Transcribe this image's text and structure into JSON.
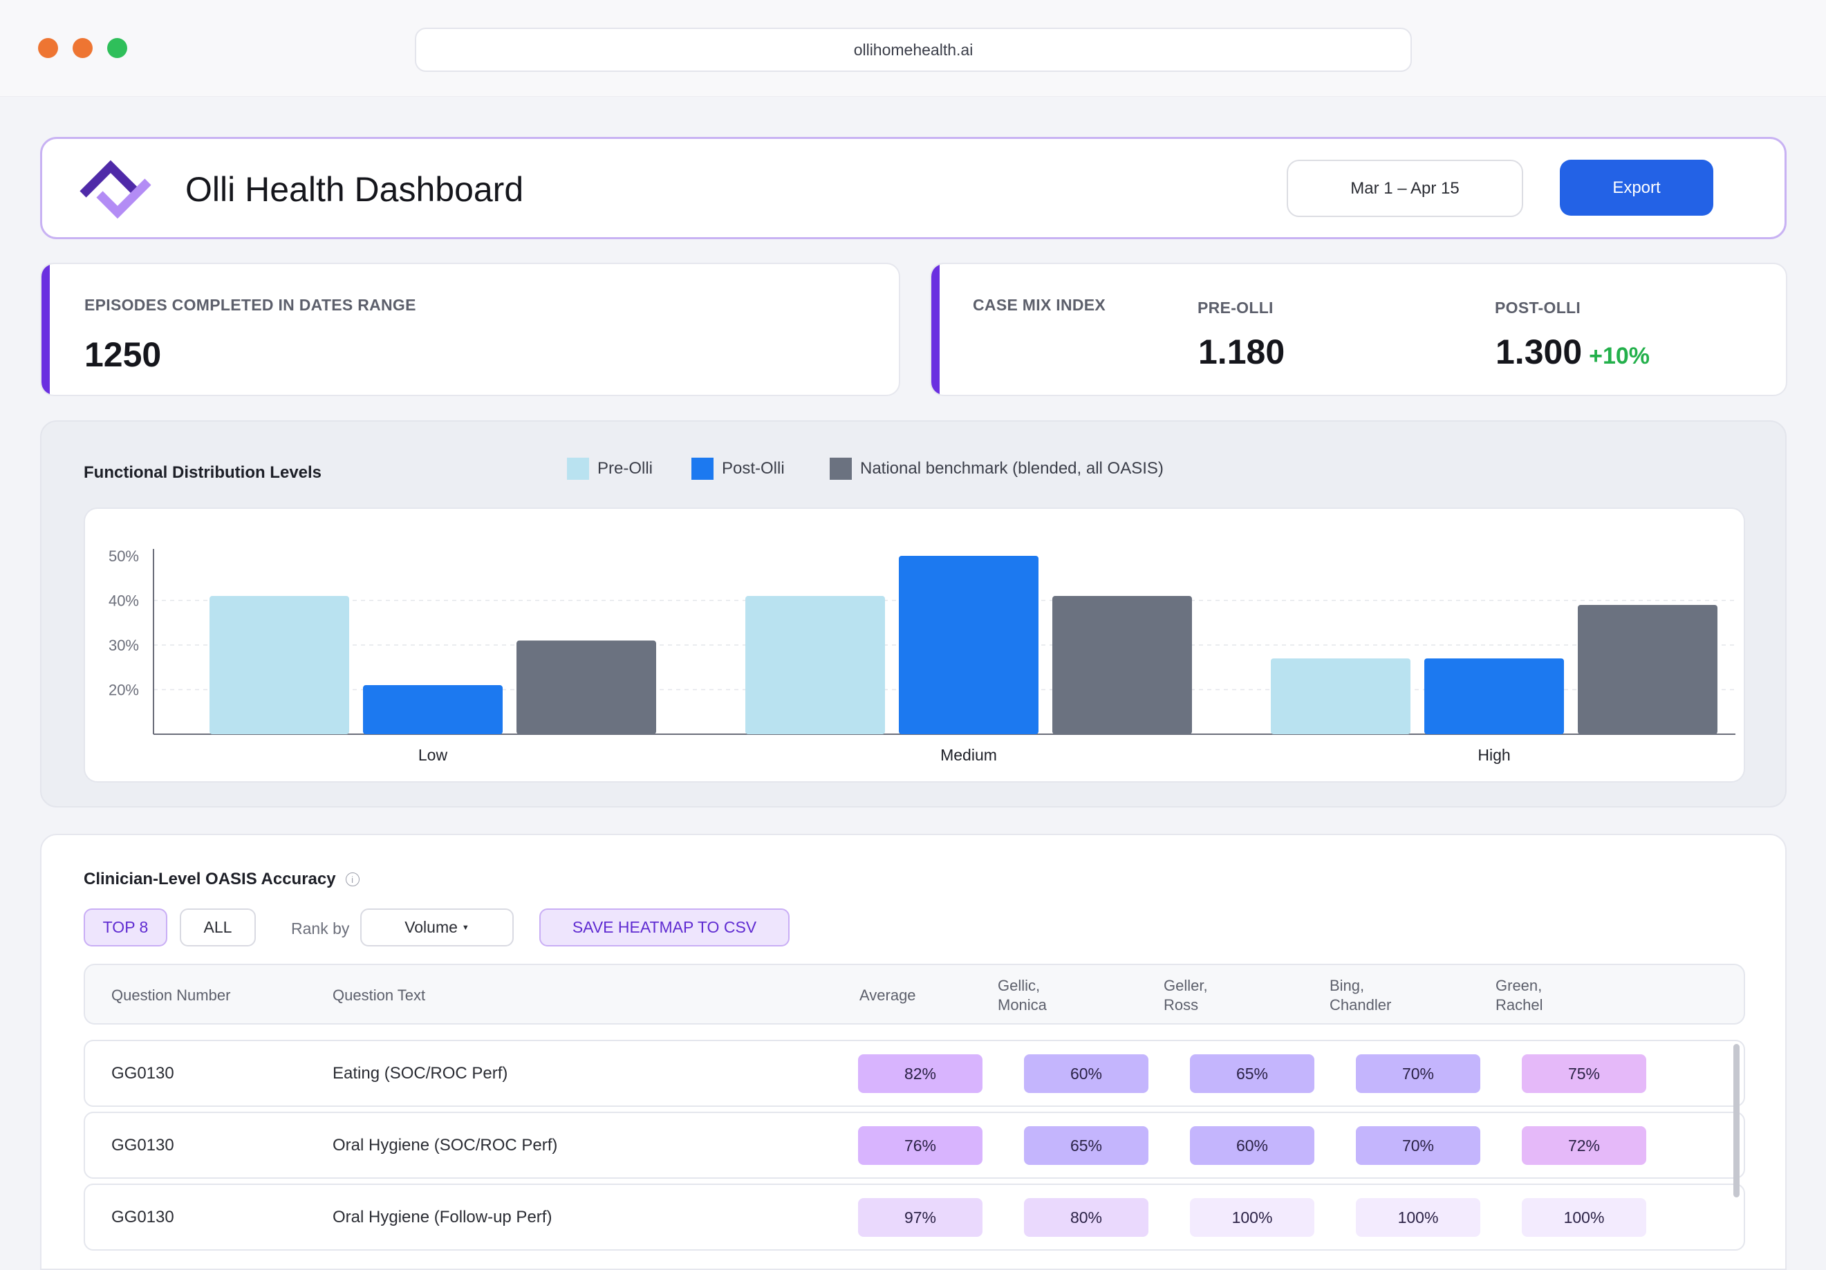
{
  "browser": {
    "url": "ollihomehealth.ai"
  },
  "header": {
    "title": "Olli Health Dashboard",
    "date_range": "Mar 1 – Apr 15",
    "export_label": "Export"
  },
  "stats": {
    "episodes": {
      "label": "EPISODES COMPLETED IN DATES RANGE",
      "value": "1250"
    },
    "case_mix": {
      "label": "CASE MIX INDEX",
      "pre_label": "PRE-OLLI",
      "pre_value": "1.180",
      "post_label": "POST-OLLI",
      "post_value": "1.300",
      "delta": "+10%"
    }
  },
  "chart_section": {
    "title": "Functional Distribution Levels",
    "legend": [
      "Pre-Olli",
      "Post-Olli",
      "National benchmark (blended, all OASIS)"
    ]
  },
  "chart_data": {
    "type": "bar",
    "title": "Functional Distribution Levels",
    "categories": [
      "Low",
      "Medium",
      "High"
    ],
    "series": [
      {
        "name": "Pre-Olli",
        "values": [
          41,
          41,
          27
        ],
        "color": "#b9e2f0"
      },
      {
        "name": "Post-Olli",
        "values": [
          21,
          50,
          27
        ],
        "color": "#1c79f0"
      },
      {
        "name": "National benchmark (blended, all OASIS)",
        "values": [
          31,
          41,
          39
        ],
        "color": "#6b7280"
      }
    ],
    "y_ticks": [
      "20%",
      "30%",
      "40%",
      "50%"
    ],
    "ylim": [
      10,
      51
    ],
    "grid": true,
    "legend_position": "top"
  },
  "table_section": {
    "title": "Clinician-Level OASIS Accuracy",
    "top_label": "TOP 8",
    "all_label": "ALL",
    "rank_label": "Rank by",
    "rank_value": "Volume",
    "save_label": "SAVE HEATMAP TO CSV",
    "columns": {
      "question_number": "Question Number",
      "question_text": "Question Text",
      "average": "Average",
      "c1_last": "Gellic,",
      "c1_first": "Monica",
      "c2_last": "Geller,",
      "c2_first": "Ross",
      "c3_last": "Bing,",
      "c3_first": "Chandler",
      "c4_last": "Green,",
      "c4_first": "Rachel"
    },
    "rows": [
      {
        "number": "GG0130",
        "text": "Eating (SOC/ROC Perf)",
        "values": [
          "82%",
          "60%",
          "65%",
          "70%",
          "75%"
        ]
      },
      {
        "number": "GG0130",
        "text": "Oral Hygiene (SOC/ROC Perf)",
        "values": [
          "76%",
          "65%",
          "60%",
          "70%",
          "72%"
        ]
      },
      {
        "number": "GG0130",
        "text": "Oral Hygiene (Follow-up Perf)",
        "values": [
          "97%",
          "80%",
          "100%",
          "100%",
          "100%"
        ]
      }
    ],
    "heat_colors": {
      "hot": "#d8b4fe",
      "mid": "#c4b5fd",
      "pink": "#e5b9f9",
      "light": "#ead9fd",
      "faint": "#f3ebfe"
    }
  }
}
